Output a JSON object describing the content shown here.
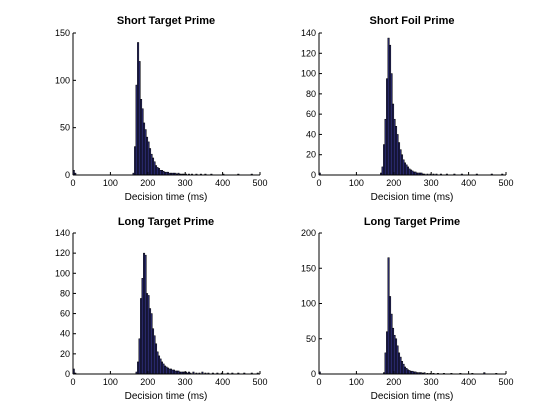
{
  "chart_data": [
    {
      "type": "bar",
      "title": "Short Target Prime",
      "xlabel": "Decision time (ms)",
      "ylabel": "",
      "xlim": [
        0,
        500
      ],
      "ylim": [
        0,
        150
      ],
      "xticks": [
        0,
        100,
        200,
        300,
        400,
        500
      ],
      "yticks": [
        0,
        50,
        100,
        150
      ],
      "bin_width": 4,
      "bins": [
        {
          "x": 0,
          "y": 5
        },
        {
          "x": 4,
          "y": 2
        },
        {
          "x": 160,
          "y": 2
        },
        {
          "x": 164,
          "y": 30
        },
        {
          "x": 168,
          "y": 95
        },
        {
          "x": 172,
          "y": 140
        },
        {
          "x": 176,
          "y": 120
        },
        {
          "x": 180,
          "y": 80
        },
        {
          "x": 184,
          "y": 70
        },
        {
          "x": 188,
          "y": 55
        },
        {
          "x": 192,
          "y": 48
        },
        {
          "x": 196,
          "y": 40
        },
        {
          "x": 200,
          "y": 35
        },
        {
          "x": 204,
          "y": 28
        },
        {
          "x": 208,
          "y": 22
        },
        {
          "x": 212,
          "y": 18
        },
        {
          "x": 216,
          "y": 14
        },
        {
          "x": 220,
          "y": 10
        },
        {
          "x": 224,
          "y": 8
        },
        {
          "x": 228,
          "y": 7
        },
        {
          "x": 232,
          "y": 5
        },
        {
          "x": 236,
          "y": 5
        },
        {
          "x": 240,
          "y": 4
        },
        {
          "x": 244,
          "y": 3
        },
        {
          "x": 248,
          "y": 3
        },
        {
          "x": 252,
          "y": 3
        },
        {
          "x": 256,
          "y": 2
        },
        {
          "x": 260,
          "y": 2
        },
        {
          "x": 264,
          "y": 2
        },
        {
          "x": 268,
          "y": 2
        },
        {
          "x": 272,
          "y": 2
        },
        {
          "x": 276,
          "y": 1
        },
        {
          "x": 280,
          "y": 2
        },
        {
          "x": 284,
          "y": 1
        },
        {
          "x": 288,
          "y": 1
        },
        {
          "x": 292,
          "y": 1
        },
        {
          "x": 296,
          "y": 1
        },
        {
          "x": 300,
          "y": 1
        },
        {
          "x": 308,
          "y": 1
        },
        {
          "x": 316,
          "y": 1
        },
        {
          "x": 328,
          "y": 1
        },
        {
          "x": 340,
          "y": 1
        },
        {
          "x": 352,
          "y": 1
        },
        {
          "x": 368,
          "y": 1
        },
        {
          "x": 400,
          "y": 1
        },
        {
          "x": 440,
          "y": 1
        },
        {
          "x": 476,
          "y": 1
        }
      ]
    },
    {
      "type": "bar",
      "title": "Short Foil Prime",
      "xlabel": "Decision time (ms)",
      "ylabel": "",
      "xlim": [
        0,
        500
      ],
      "ylim": [
        0,
        140
      ],
      "xticks": [
        0,
        100,
        200,
        300,
        400,
        500
      ],
      "yticks": [
        0,
        20,
        40,
        60,
        80,
        100,
        120,
        140
      ],
      "bin_width": 4,
      "bins": [
        {
          "x": 0,
          "y": 2
        },
        {
          "x": 164,
          "y": 2
        },
        {
          "x": 168,
          "y": 8
        },
        {
          "x": 172,
          "y": 30
        },
        {
          "x": 176,
          "y": 55
        },
        {
          "x": 180,
          "y": 95
        },
        {
          "x": 184,
          "y": 135
        },
        {
          "x": 188,
          "y": 128
        },
        {
          "x": 192,
          "y": 100
        },
        {
          "x": 196,
          "y": 70
        },
        {
          "x": 200,
          "y": 55
        },
        {
          "x": 204,
          "y": 48
        },
        {
          "x": 208,
          "y": 40
        },
        {
          "x": 212,
          "y": 32
        },
        {
          "x": 216,
          "y": 25
        },
        {
          "x": 220,
          "y": 20
        },
        {
          "x": 224,
          "y": 15
        },
        {
          "x": 228,
          "y": 12
        },
        {
          "x": 232,
          "y": 10
        },
        {
          "x": 236,
          "y": 8
        },
        {
          "x": 240,
          "y": 6
        },
        {
          "x": 244,
          "y": 5
        },
        {
          "x": 248,
          "y": 4
        },
        {
          "x": 252,
          "y": 3
        },
        {
          "x": 256,
          "y": 3
        },
        {
          "x": 260,
          "y": 2
        },
        {
          "x": 264,
          "y": 2
        },
        {
          "x": 268,
          "y": 2
        },
        {
          "x": 272,
          "y": 2
        },
        {
          "x": 276,
          "y": 1
        },
        {
          "x": 280,
          "y": 1
        },
        {
          "x": 288,
          "y": 1
        },
        {
          "x": 296,
          "y": 1
        },
        {
          "x": 304,
          "y": 1
        },
        {
          "x": 312,
          "y": 1
        },
        {
          "x": 324,
          "y": 1
        },
        {
          "x": 340,
          "y": 1
        },
        {
          "x": 360,
          "y": 1
        },
        {
          "x": 380,
          "y": 1
        },
        {
          "x": 420,
          "y": 1
        },
        {
          "x": 460,
          "y": 1
        },
        {
          "x": 488,
          "y": 1
        }
      ]
    },
    {
      "type": "bar",
      "title": "Long Target Prime",
      "xlabel": "Decision time (ms)",
      "ylabel": "",
      "xlim": [
        0,
        500
      ],
      "ylim": [
        0,
        140
      ],
      "xticks": [
        0,
        100,
        200,
        300,
        400,
        500
      ],
      "yticks": [
        0,
        20,
        40,
        60,
        80,
        100,
        120,
        140
      ],
      "bin_width": 4,
      "bins": [
        {
          "x": 0,
          "y": 5
        },
        {
          "x": 4,
          "y": 1
        },
        {
          "x": 168,
          "y": 2
        },
        {
          "x": 172,
          "y": 12
        },
        {
          "x": 176,
          "y": 35
        },
        {
          "x": 180,
          "y": 75
        },
        {
          "x": 184,
          "y": 95
        },
        {
          "x": 188,
          "y": 120
        },
        {
          "x": 192,
          "y": 118
        },
        {
          "x": 196,
          "y": 80
        },
        {
          "x": 200,
          "y": 78
        },
        {
          "x": 204,
          "y": 65
        },
        {
          "x": 208,
          "y": 60
        },
        {
          "x": 212,
          "y": 45
        },
        {
          "x": 216,
          "y": 38
        },
        {
          "x": 220,
          "y": 30
        },
        {
          "x": 224,
          "y": 22
        },
        {
          "x": 228,
          "y": 18
        },
        {
          "x": 232,
          "y": 15
        },
        {
          "x": 236,
          "y": 12
        },
        {
          "x": 240,
          "y": 10
        },
        {
          "x": 244,
          "y": 8
        },
        {
          "x": 248,
          "y": 7
        },
        {
          "x": 252,
          "y": 6
        },
        {
          "x": 256,
          "y": 5
        },
        {
          "x": 260,
          "y": 5
        },
        {
          "x": 264,
          "y": 4
        },
        {
          "x": 268,
          "y": 4
        },
        {
          "x": 272,
          "y": 3
        },
        {
          "x": 276,
          "y": 3
        },
        {
          "x": 280,
          "y": 3
        },
        {
          "x": 284,
          "y": 2
        },
        {
          "x": 288,
          "y": 2
        },
        {
          "x": 292,
          "y": 2
        },
        {
          "x": 296,
          "y": 2
        },
        {
          "x": 300,
          "y": 2
        },
        {
          "x": 304,
          "y": 1
        },
        {
          "x": 308,
          "y": 2
        },
        {
          "x": 312,
          "y": 1
        },
        {
          "x": 320,
          "y": 2
        },
        {
          "x": 328,
          "y": 1
        },
        {
          "x": 336,
          "y": 1
        },
        {
          "x": 344,
          "y": 2
        },
        {
          "x": 352,
          "y": 1
        },
        {
          "x": 360,
          "y": 1
        },
        {
          "x": 372,
          "y": 1
        },
        {
          "x": 384,
          "y": 1
        },
        {
          "x": 396,
          "y": 1
        },
        {
          "x": 412,
          "y": 1
        },
        {
          "x": 424,
          "y": 1
        },
        {
          "x": 440,
          "y": 1
        },
        {
          "x": 456,
          "y": 1
        },
        {
          "x": 476,
          "y": 1
        },
        {
          "x": 492,
          "y": 1
        }
      ]
    },
    {
      "type": "bar",
      "title": "Long Target Prime",
      "xlabel": "Decision time (ms)",
      "ylabel": "",
      "xlim": [
        0,
        500
      ],
      "ylim": [
        0,
        200
      ],
      "xticks": [
        0,
        100,
        200,
        300,
        400,
        500
      ],
      "yticks": [
        0,
        50,
        100,
        150,
        200
      ],
      "bin_width": 4,
      "bins": [
        {
          "x": 0,
          "y": 3
        },
        {
          "x": 172,
          "y": 2
        },
        {
          "x": 176,
          "y": 30
        },
        {
          "x": 180,
          "y": 60
        },
        {
          "x": 184,
          "y": 165
        },
        {
          "x": 188,
          "y": 110
        },
        {
          "x": 192,
          "y": 85
        },
        {
          "x": 196,
          "y": 65
        },
        {
          "x": 200,
          "y": 55
        },
        {
          "x": 204,
          "y": 50
        },
        {
          "x": 208,
          "y": 40
        },
        {
          "x": 212,
          "y": 30
        },
        {
          "x": 216,
          "y": 24
        },
        {
          "x": 220,
          "y": 18
        },
        {
          "x": 224,
          "y": 14
        },
        {
          "x": 228,
          "y": 10
        },
        {
          "x": 232,
          "y": 8
        },
        {
          "x": 236,
          "y": 6
        },
        {
          "x": 240,
          "y": 5
        },
        {
          "x": 244,
          "y": 4
        },
        {
          "x": 248,
          "y": 4
        },
        {
          "x": 252,
          "y": 3
        },
        {
          "x": 256,
          "y": 3
        },
        {
          "x": 260,
          "y": 2
        },
        {
          "x": 264,
          "y": 2
        },
        {
          "x": 268,
          "y": 2
        },
        {
          "x": 272,
          "y": 2
        },
        {
          "x": 276,
          "y": 1
        },
        {
          "x": 280,
          "y": 2
        },
        {
          "x": 288,
          "y": 1
        },
        {
          "x": 296,
          "y": 1
        },
        {
          "x": 304,
          "y": 1
        },
        {
          "x": 316,
          "y": 1
        },
        {
          "x": 332,
          "y": 1
        },
        {
          "x": 352,
          "y": 1
        },
        {
          "x": 376,
          "y": 1
        },
        {
          "x": 408,
          "y": 1
        },
        {
          "x": 440,
          "y": 2
        },
        {
          "x": 472,
          "y": 1
        }
      ]
    }
  ],
  "colors": {
    "bar_fill": "#2a2a6e",
    "bar_edge": "#000000",
    "axis": "#000000",
    "background": "#ffffff"
  }
}
